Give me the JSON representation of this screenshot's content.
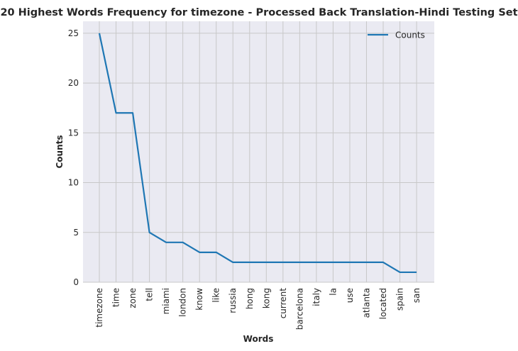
{
  "chart_data": {
    "type": "line",
    "title": "20 Highest Words Frequency for timezone - Processed Back Translation-Hindi Testing Set",
    "xlabel": "Words",
    "ylabel": "Counts",
    "categories": [
      "timezone",
      "time",
      "zone",
      "tell",
      "miami",
      "london",
      "know",
      "like",
      "russia",
      "hong",
      "kong",
      "current",
      "barcelona",
      "italy",
      "la",
      "use",
      "atlanta",
      "located",
      "spain",
      "san"
    ],
    "series": [
      {
        "name": "Counts",
        "values": [
          25,
          17,
          17,
          5,
          4,
          4,
          3,
          3,
          2,
          2,
          2,
          2,
          2,
          2,
          2,
          2,
          2,
          2,
          1,
          1
        ],
        "color": "#1f77b4"
      }
    ],
    "ylim": [
      0,
      26.2
    ],
    "yticks": [
      0,
      5,
      10,
      15,
      20,
      25
    ],
    "grid": true,
    "legend": "top-right",
    "background": "#eaeaf2",
    "grid_color": "#c8c8c8"
  }
}
